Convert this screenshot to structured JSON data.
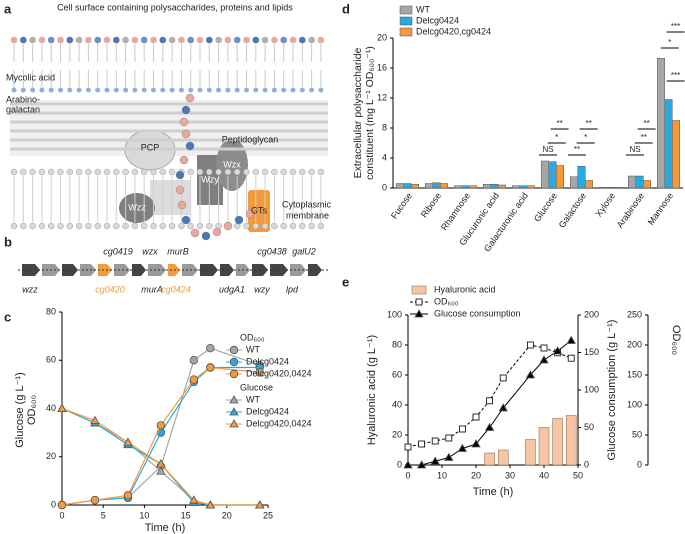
{
  "panel_labels": [
    "a",
    "b",
    "c",
    "d",
    "e"
  ],
  "diagram": {
    "title": "Cell surface containing polysaccharides, proteins and lipids",
    "labels": {
      "mycolic": "Mycolic acid",
      "arabino1": "Arabino-",
      "arabino2": "galactan",
      "peptidoglycan": "Peptidoglycan",
      "pcp": "PCP",
      "wzy": "Wzy",
      "wzx": "Wzx",
      "wzz": "Wzz",
      "gts": "GTs",
      "cyto1": "Cytoplasmic",
      "cyto2": "membrane"
    }
  },
  "gene_map": {
    "top": [
      "cg0419",
      "wzx",
      "murB",
      "cg0438",
      "galU2"
    ],
    "bottom": [
      "wzz",
      "cg0420",
      "murA",
      "cg0424",
      "udgA1",
      "wzy",
      "lpd"
    ]
  },
  "chart_data": [
    {
      "type": "line",
      "xlabel": "Time (h)",
      "ylabel": [
        "Glucose (g L⁻¹)",
        "OD₆₀₀"
      ],
      "legend_titles": [
        "OD₆₀₀",
        "Glucose"
      ],
      "x": [
        0,
        4,
        8,
        12,
        16,
        18,
        24
      ],
      "xlim": [
        0,
        25
      ],
      "xticks": [
        0,
        5,
        10,
        15,
        20,
        25
      ],
      "ylim": [
        0,
        80
      ],
      "yticks": [
        0,
        20,
        40,
        60,
        80
      ],
      "series": [
        {
          "name": "WT",
          "color": "#a6a6a6",
          "marker": "circle",
          "values": [
            0,
            2,
            3,
            16,
            60,
            65,
            58
          ]
        },
        {
          "name": "Delcg0424",
          "color": "#2aa8e0",
          "marker": "circle",
          "values": [
            0,
            2,
            3,
            30,
            51,
            57,
            57
          ]
        },
        {
          "name": "Delcg0420,0424",
          "color": "#f39a3c",
          "marker": "circle",
          "values": [
            0,
            2,
            4,
            33,
            52,
            57,
            55
          ]
        },
        {
          "name": "WT",
          "color": "#a6a6a6",
          "marker": "triangle",
          "values": [
            40,
            34,
            26,
            14,
            2,
            0,
            0
          ]
        },
        {
          "name": "Delcg0424",
          "color": "#2aa8e0",
          "marker": "triangle",
          "values": [
            40,
            34,
            25,
            17,
            1,
            0,
            0
          ]
        },
        {
          "name": "Delcg0420,0424",
          "color": "#f39a3c",
          "marker": "triangle",
          "values": [
            40,
            35,
            26,
            17,
            2,
            0,
            0
          ]
        }
      ]
    },
    {
      "type": "bar",
      "ylabel": [
        "Extracellular polysaccharide",
        "constituent (mg L⁻¹ OD₆₀₀⁻¹)"
      ],
      "categories": [
        "Fucose",
        "Ribose",
        "Rhamnose",
        "Glucuronic acid",
        "Galacturonic acid",
        "Glucose",
        "Galactose",
        "Xylose",
        "Arabinose",
        "Mannose"
      ],
      "ylim": [
        0,
        20
      ],
      "yticks": [
        0,
        4,
        8,
        12,
        16,
        20
      ],
      "series": [
        {
          "name": "WT",
          "color": "#a6a6a6",
          "values": [
            0.6,
            0.6,
            0.3,
            0.5,
            0.3,
            3.6,
            1.5,
            0.1,
            1.6,
            17.3
          ]
        },
        {
          "name": "Delcg0424",
          "color": "#2aa8e0",
          "values": [
            0.6,
            0.7,
            0.3,
            0.5,
            0.3,
            3.5,
            2.9,
            0.1,
            1.6,
            11.8
          ]
        },
        {
          "name": "Delcg0420,cg0424",
          "color": "#f39a3c",
          "values": [
            0.5,
            0.6,
            0.3,
            0.4,
            0.3,
            3.0,
            1.0,
            0.1,
            1.0,
            9.0
          ]
        }
      ],
      "annotations": [
        "NS",
        "*",
        "**",
        "**",
        "*",
        "**",
        "NS",
        "**",
        "**",
        "*",
        "***",
        "***"
      ]
    },
    {
      "type": "combo",
      "xlabel": "Time (h)",
      "ylabel": "Hyaluronic acid (g L⁻¹)",
      "y2label": "Glucose consumption (g L⁻¹)",
      "y3label": "OD₆₀₀",
      "x": [
        0,
        4,
        8,
        12,
        16,
        20,
        24,
        28,
        36,
        40,
        44,
        48
      ],
      "xlim": [
        0,
        50
      ],
      "xticks": [
        0,
        10,
        20,
        30,
        40,
        50
      ],
      "ylim": [
        0,
        100
      ],
      "yticks": [
        0,
        20,
        40,
        60,
        80,
        100
      ],
      "y2lim": [
        0,
        200
      ],
      "y2ticks": [
        0,
        50,
        100,
        150,
        200
      ],
      "y3lim": [
        0,
        250
      ],
      "y3ticks": [
        0,
        50,
        100,
        150,
        200,
        250
      ],
      "series": [
        {
          "name": "Hyaluronic acid",
          "kind": "bar",
          "color": "#f5c6a5",
          "values": [
            null,
            null,
            null,
            null,
            null,
            null,
            8,
            10,
            17,
            25,
            31,
            33
          ]
        },
        {
          "name": "OD₆₀₀",
          "kind": "line",
          "marker": "square",
          "axis": "y3",
          "color": "#000000",
          "values": [
            30,
            35,
            40,
            45,
            60,
            80,
            107,
            145,
            200,
            195,
            187,
            178
          ]
        },
        {
          "name": "Glucose consumption",
          "kind": "line",
          "marker": "triangle",
          "axis": "y2",
          "color": "#000000",
          "values": [
            0,
            0,
            5,
            10,
            22,
            28,
            50,
            76,
            120,
            140,
            152,
            166
          ]
        }
      ]
    }
  ]
}
